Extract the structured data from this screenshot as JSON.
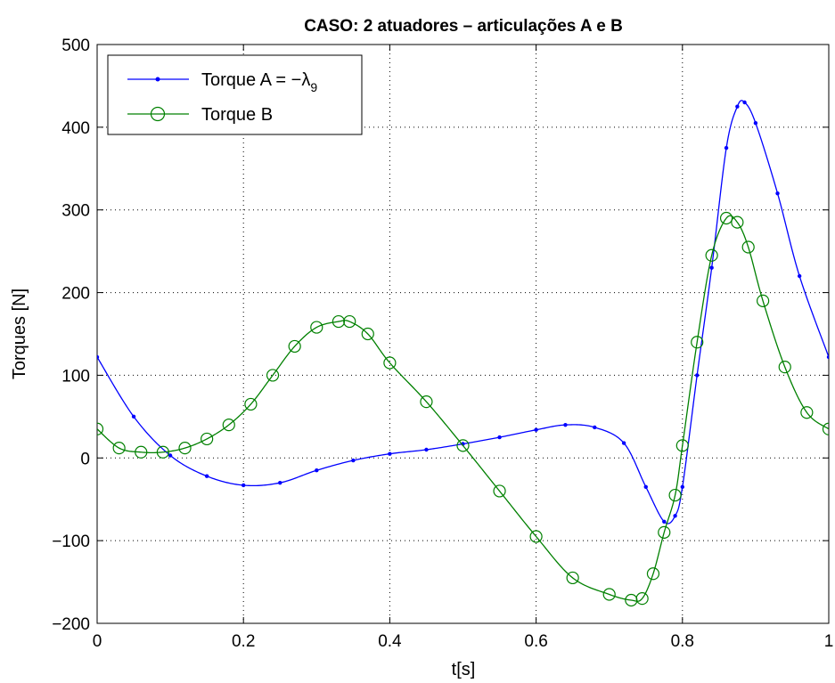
{
  "chart_data": {
    "type": "line",
    "title": "CASO: 2 atuadores – articulações A e B",
    "xlabel": "t[s]",
    "ylabel": "Torques [N]",
    "xlim": [
      0,
      1
    ],
    "ylim": [
      -200,
      500
    ],
    "xticks": [
      0,
      0.2,
      0.4,
      0.6,
      0.8,
      1
    ],
    "xtick_labels": [
      "0",
      "0.2",
      "0.4",
      "0.6",
      "0.8",
      "1"
    ],
    "yticks": [
      -200,
      -100,
      0,
      100,
      200,
      300,
      400,
      500
    ],
    "ytick_labels": [
      "−200",
      "−100",
      "0",
      "100",
      "200",
      "300",
      "400",
      "500"
    ],
    "grid": true,
    "legend_position": "top-left",
    "series": [
      {
        "name": "Torque A = −λ",
        "name_subscript": "9",
        "color": "#0000ff",
        "marker": "dot",
        "x": [
          0,
          0.05,
          0.1,
          0.15,
          0.2,
          0.25,
          0.3,
          0.35,
          0.4,
          0.45,
          0.5,
          0.55,
          0.6,
          0.64,
          0.68,
          0.72,
          0.75,
          0.775,
          0.79,
          0.8,
          0.82,
          0.84,
          0.86,
          0.875,
          0.885,
          0.9,
          0.93,
          0.96,
          1
        ],
        "y": [
          122,
          50,
          3,
          -22,
          -33,
          -30,
          -15,
          -3,
          5,
          10,
          17,
          25,
          34,
          40,
          37,
          18,
          -35,
          -77,
          -70,
          -35,
          100,
          230,
          375,
          425,
          430,
          405,
          320,
          220,
          122
        ]
      },
      {
        "name": "Torque B",
        "color": "#008000",
        "marker": "circle",
        "x": [
          0,
          0.03,
          0.06,
          0.09,
          0.12,
          0.15,
          0.18,
          0.21,
          0.24,
          0.27,
          0.3,
          0.33,
          0.345,
          0.37,
          0.4,
          0.45,
          0.5,
          0.55,
          0.6,
          0.65,
          0.7,
          0.73,
          0.745,
          0.76,
          0.775,
          0.79,
          0.8,
          0.82,
          0.84,
          0.86,
          0.875,
          0.89,
          0.91,
          0.94,
          0.97,
          1
        ],
        "y": [
          35,
          12,
          7,
          7,
          12,
          23,
          40,
          65,
          100,
          135,
          158,
          165,
          165,
          150,
          115,
          68,
          15,
          -40,
          -95,
          -145,
          -165,
          -172,
          -170,
          -140,
          -90,
          -45,
          15,
          140,
          245,
          290,
          285,
          255,
          190,
          110,
          55,
          35
        ]
      }
    ]
  }
}
